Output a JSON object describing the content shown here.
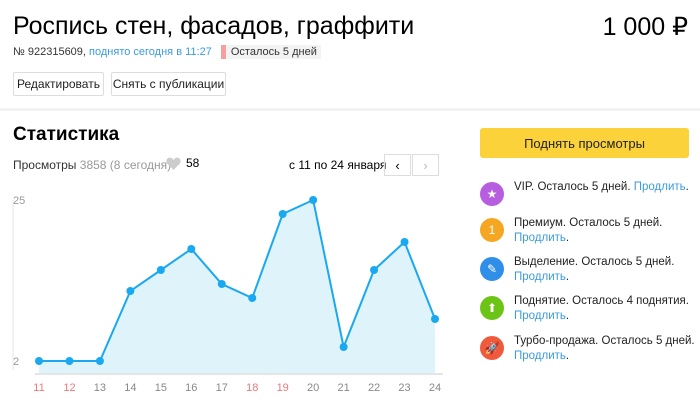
{
  "header": {
    "title": "Роспись стен, фасадов, граффити",
    "price": "1 000 ₽",
    "number": "№ 922315609,",
    "raised": "поднято сегодня в 11:27",
    "remaining": "Осталось 5 дней"
  },
  "actions": {
    "edit": "Редактировать",
    "unpublish": "Снять с публикации"
  },
  "stats": {
    "title": "Статистика",
    "views_label": "Просмотры",
    "views_count": "3858 (8 сегодня)",
    "favorites": "58",
    "range": "с 11 по 24 января",
    "prev": "‹",
    "next": "›"
  },
  "sidebar": {
    "raise_button": "Поднять просмотры",
    "extend": "Продлить",
    "services": [
      {
        "text": "VIP. Осталось 5 дней.",
        "icon": "vip-star-icon",
        "color": "#b65de0",
        "glyph": "★"
      },
      {
        "text": "Премиум. Осталось 5 дней.",
        "icon": "premium-badge-icon",
        "color": "#f5a623",
        "glyph": "1"
      },
      {
        "text": "Выделение. Осталось 5 дней.",
        "icon": "highlight-marker-icon",
        "color": "#2f8ee8",
        "glyph": "✎"
      },
      {
        "text": "Поднятие. Осталось 4 поднятия.",
        "icon": "arrow-up-icon",
        "color": "#6cc417",
        "glyph": "⬆"
      },
      {
        "text": "Турбо-продажа. Осталось 5 дней.",
        "icon": "rocket-icon",
        "color": "#ef5a3c",
        "glyph": "🚀"
      }
    ]
  },
  "chart_data": {
    "type": "area",
    "x": [
      "11",
      "12",
      "13",
      "14",
      "15",
      "16",
      "17",
      "18",
      "19",
      "20",
      "21",
      "22",
      "23",
      "24"
    ],
    "weekend": [
      "11",
      "12",
      "18",
      "19"
    ],
    "values": [
      2,
      2,
      2,
      12,
      15,
      18,
      13,
      11,
      23,
      25,
      4,
      15,
      19,
      8
    ],
    "ytick_labels": [
      "2",
      "25"
    ],
    "ylim": [
      2,
      25
    ],
    "line_color": "#1aa8f0",
    "fill_color": "#dff3fb",
    "weekend_color": "#f0787a"
  }
}
